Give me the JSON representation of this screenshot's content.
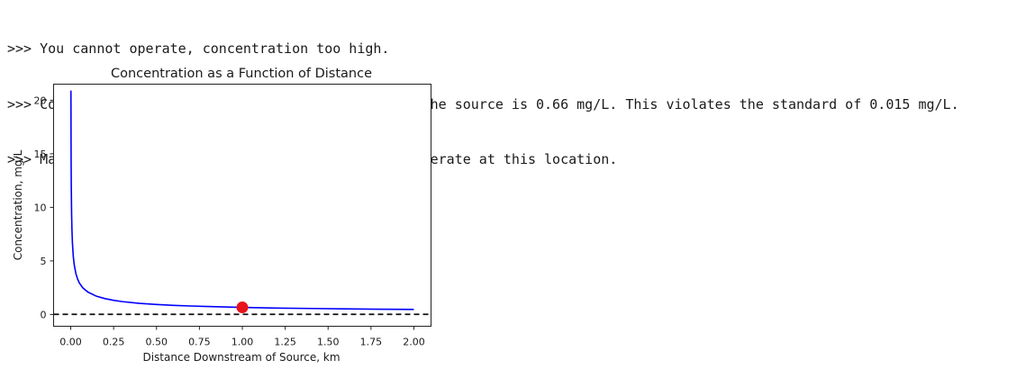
{
  "console": {
    "lines": [
      ">>> You cannot operate, concentration too high.",
      ">>> Concentration at the site 1.0 km downstream of the source is 0.66 mg/L. This violates the standard of 0.015 mg/L.",
      ">>> Mass loading must be reduced to 11.36 kg/s to operate at this location."
    ]
  },
  "chart_data": {
    "type": "line",
    "title": "Concentration as a Function of Distance",
    "xlabel": "Distance Downstream of Source, km",
    "ylabel": "Concentration, mg/L",
    "xlim": [
      -0.1,
      2.1
    ],
    "ylim": [
      -1.1,
      21.5
    ],
    "xticks": [
      "0.00",
      "0.25",
      "0.50",
      "0.75",
      "1.00",
      "1.25",
      "1.50",
      "1.75",
      "2.00"
    ],
    "yticks": [
      "0",
      "5",
      "10",
      "15",
      "20"
    ],
    "grid": false,
    "series": [
      {
        "color": "#0000ff",
        "x": [
          0.001,
          0.002,
          0.003,
          0.005,
          0.007,
          0.01,
          0.015,
          0.02,
          0.03,
          0.04,
          0.05,
          0.07,
          0.1,
          0.15,
          0.2,
          0.25,
          0.3,
          0.4,
          0.5,
          0.6,
          0.7,
          0.8,
          0.9,
          1.0,
          1.2,
          1.4,
          1.6,
          1.8,
          2.0
        ],
        "y": [
          20.9,
          14.76,
          12.05,
          9.33,
          7.89,
          6.6,
          5.39,
          4.67,
          3.81,
          3.3,
          2.95,
          2.49,
          2.09,
          1.7,
          1.48,
          1.32,
          1.2,
          1.04,
          0.93,
          0.85,
          0.79,
          0.74,
          0.7,
          0.66,
          0.6,
          0.56,
          0.52,
          0.49,
          0.47
        ]
      }
    ],
    "point": {
      "x": 1.0,
      "y": 0.66,
      "color": "#e8121a"
    },
    "hline": {
      "y": 0.015,
      "color": "#111111",
      "style": "dashed"
    }
  }
}
